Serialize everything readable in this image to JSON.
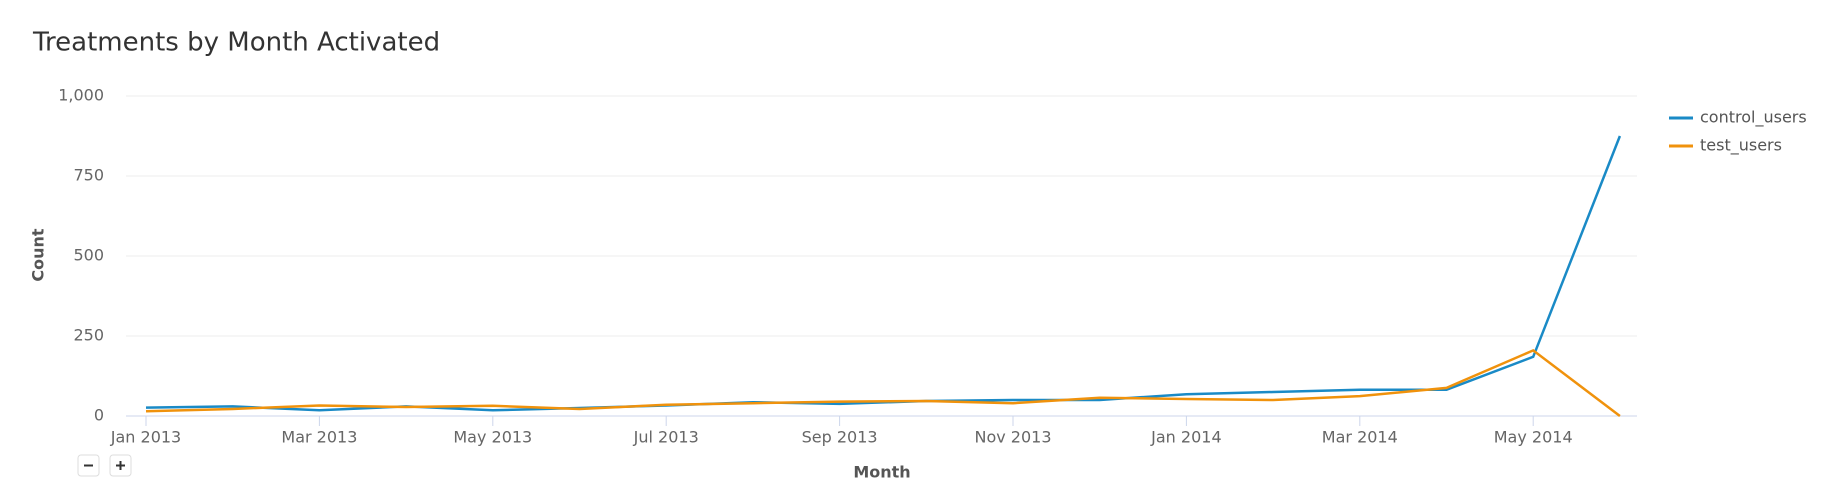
{
  "chart_data": {
    "type": "line",
    "title": "Treatments by Month Activated",
    "x_label": "Month",
    "y_label": "Count",
    "categories": [
      "Jan 2013",
      null,
      "Mar 2013",
      null,
      "May 2013",
      null,
      "Jul 2013",
      null,
      "Sep 2013",
      null,
      "Nov 2013",
      null,
      "Jan 2014",
      null,
      "Mar 2014",
      null,
      "May 2014",
      null
    ],
    "series": [
      {
        "name": "control_users",
        "color": "#1a8ac6",
        "values": [
          26,
          30,
          18,
          30,
          18,
          25,
          33,
          43,
          38,
          47,
          50,
          50,
          68,
          75,
          82,
          82,
          185,
          875
        ]
      },
      {
        "name": "test_users",
        "color": "#f0920c",
        "values": [
          15,
          22,
          33,
          28,
          32,
          22,
          35,
          40,
          45,
          47,
          40,
          57,
          53,
          50,
          62,
          88,
          205,
          0
        ]
      }
    ],
    "ylim": [
      0,
      1000
    ],
    "yticks": [
      0,
      250,
      500,
      750,
      {
        "value": 1000,
        "label": "1,000"
      }
    ],
    "grid": true,
    "legend": "right"
  }
}
